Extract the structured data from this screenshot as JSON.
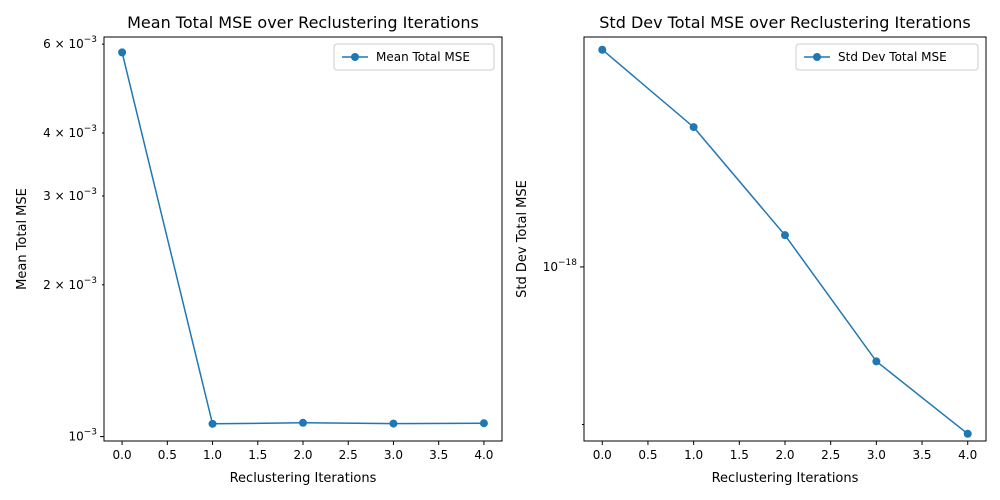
{
  "colors": {
    "series": "#1f77b4",
    "axis": "#000000",
    "legend_border": "#cccccc",
    "background": "#ffffff"
  },
  "chart_data": [
    {
      "type": "line",
      "title": "Mean Total MSE over Reclustering Iterations",
      "xlabel": "Reclustering Iterations",
      "ylabel": "Mean Total MSE",
      "yscale": "log",
      "xlim": [
        -0.2,
        4.2
      ],
      "ylim": [
        0.00098,
        0.0062
      ],
      "xticks": [
        {
          "value": 0.0,
          "label": "0.0"
        },
        {
          "value": 0.5,
          "label": "0.5"
        },
        {
          "value": 1.0,
          "label": "1.0"
        },
        {
          "value": 1.5,
          "label": "1.5"
        },
        {
          "value": 2.0,
          "label": "2.0"
        },
        {
          "value": 2.5,
          "label": "2.5"
        },
        {
          "value": 3.0,
          "label": "3.0"
        },
        {
          "value": 3.5,
          "label": "3.5"
        },
        {
          "value": 4.0,
          "label": "4.0"
        }
      ],
      "yticks_major": [
        {
          "value": 0.001,
          "mantissa": "10",
          "exponent": "−3"
        }
      ],
      "yticks_minor": [
        {
          "value": 0.002,
          "mantissa": "2 × 10",
          "exponent": "−3"
        },
        {
          "value": 0.003,
          "mantissa": "3 × 10",
          "exponent": "−3"
        },
        {
          "value": 0.004,
          "mantissa": "4 × 10",
          "exponent": "−3"
        },
        {
          "value": 0.006,
          "mantissa": "6 × 10",
          "exponent": "−3"
        }
      ],
      "legend": {
        "position": "upper-right"
      },
      "series": [
        {
          "name": "Mean Total MSE",
          "x": [
            0,
            1,
            2,
            3,
            4
          ],
          "y": [
            0.00578,
            0.00106,
            0.001065,
            0.001061,
            0.001063
          ]
        }
      ]
    },
    {
      "type": "line",
      "title": "Std Dev Total MSE over Reclustering Iterations",
      "xlabel": "Reclustering Iterations",
      "ylabel": "Std Dev Total MSE",
      "yscale": "log",
      "xlim": [
        -0.2,
        4.2
      ],
      "ylim": [
        4.65e-19,
        2.75e-18
      ],
      "xticks": [
        {
          "value": 0.0,
          "label": "0.0"
        },
        {
          "value": 0.5,
          "label": "0.5"
        },
        {
          "value": 1.0,
          "label": "1.0"
        },
        {
          "value": 1.5,
          "label": "1.5"
        },
        {
          "value": 2.0,
          "label": "2.0"
        },
        {
          "value": 2.5,
          "label": "2.5"
        },
        {
          "value": 3.0,
          "label": "3.0"
        },
        {
          "value": 3.5,
          "label": "3.5"
        },
        {
          "value": 4.0,
          "label": "4.0"
        }
      ],
      "yticks_major": [
        {
          "value": 1e-18,
          "mantissa": "10",
          "exponent": "−18"
        }
      ],
      "yticks_minor": [
        {
          "value": 5e-19,
          "mantissa": "",
          "exponent": ""
        }
      ],
      "legend": {
        "position": "upper-right"
      },
      "series": [
        {
          "name": "Std Dev Total MSE",
          "x": [
            0,
            1,
            2,
            3,
            4
          ],
          "y": [
            2.6e-18,
            1.85e-18,
            1.15e-18,
            6.6e-19,
            4.8e-19
          ]
        }
      ]
    }
  ]
}
